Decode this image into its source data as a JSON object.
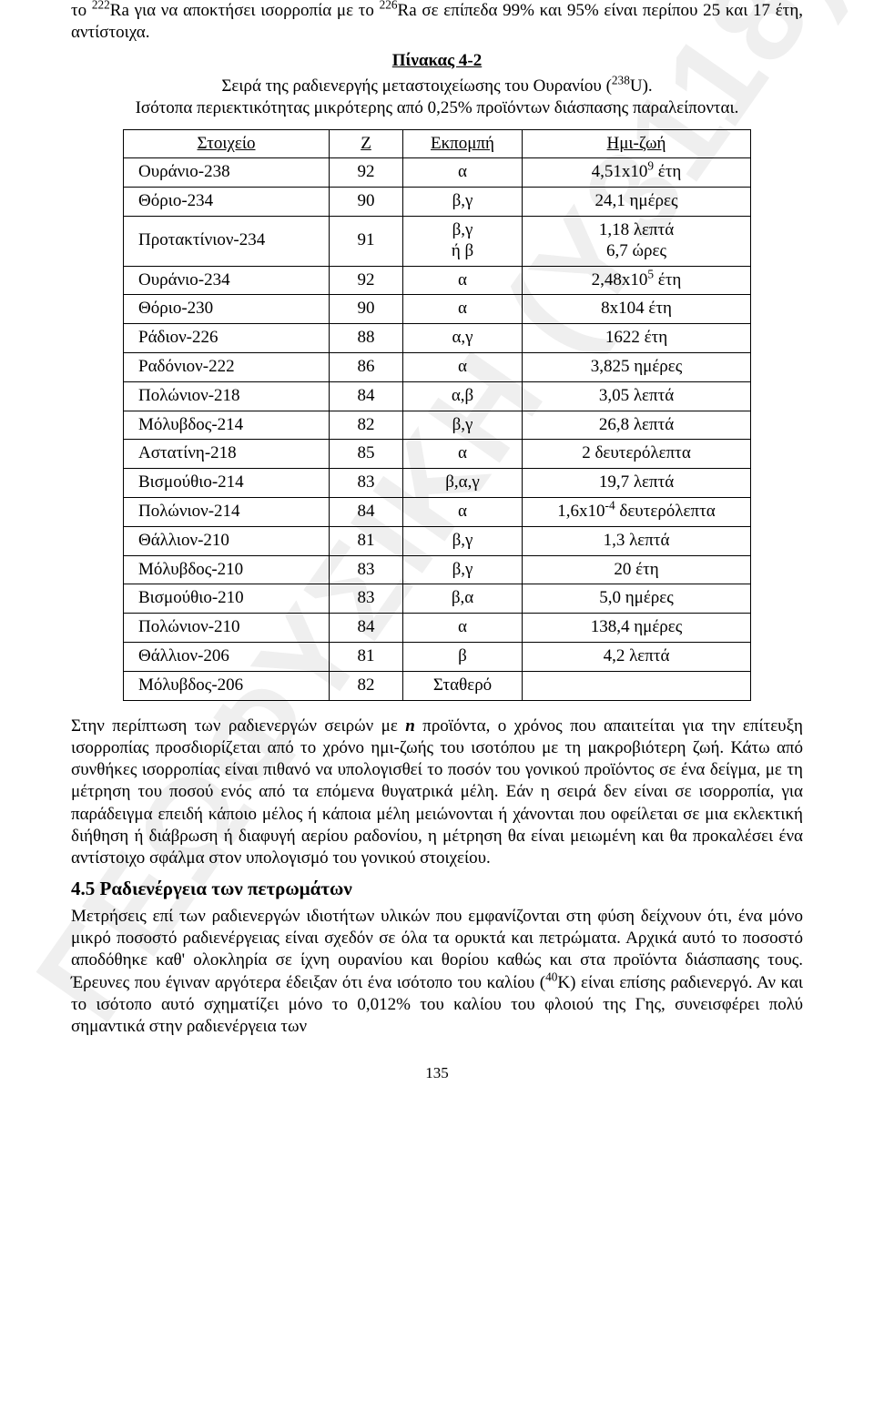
{
  "intro": {
    "line1_a": "το ",
    "line1_sup1": "222",
    "line1_b": "Ra για να αποκτήσει ισορροπία με το ",
    "line1_sup2": "226",
    "line1_c": "Ra σε επίπεδα 99% και 95% είναι περίπου 25 και 17 έτη, αντίστοιχα."
  },
  "tableTitle": {
    "t1": "Πίνακας 4-2",
    "t2_a": "Σειρά της ραδιενεργής μεταστοιχείωσης του Ουρανίου (",
    "t2_sup": "238",
    "t2_b": "U).",
    "t3": "Ισότοπα περιεκτικότητας μικρότερης από 0,25% προϊόντων διάσπασης παραλείπονται."
  },
  "headers": {
    "el": "Στοιχείο",
    "z": "Z",
    "emit": "Εκπομπή",
    "hl": "Ημι-ζωή"
  },
  "rows": [
    {
      "el": "Ουράνιο-238",
      "z": "92",
      "emit": "α",
      "hl": "4,51x10<sup>9</sup> έτη"
    },
    {
      "el": "Θόριο-234",
      "z": "90",
      "emit": "β,γ",
      "hl": "24,1 ημέρες"
    },
    {
      "el": "Προτακτίνιον-234",
      "z": "91",
      "emit": "β,γ<br>ή β",
      "hl": "1,18 λεπτά<br>6,7 ώρες"
    },
    {
      "el": "Ουράνιο-234",
      "z": "92",
      "emit": "α",
      "hl": "2,48x10<sup>5</sup> έτη"
    },
    {
      "el": "Θόριο-230",
      "z": "90",
      "emit": "α",
      "hl": "8x104 έτη"
    },
    {
      "el": "Ράδιον-226",
      "z": "88",
      "emit": "α,γ",
      "hl": "1622 έτη"
    },
    {
      "el": "Ραδόνιον-222",
      "z": "86",
      "emit": "α",
      "hl": "3,825 ημέρες"
    },
    {
      "el": "Πολώνιον-218",
      "z": "84",
      "emit": "α,β",
      "hl": "3,05 λεπτά"
    },
    {
      "el": "Μόλυβδος-214",
      "z": "82",
      "emit": "β,γ",
      "hl": "26,8 λεπτά"
    },
    {
      "el": "Αστατίνη-218",
      "z": "85",
      "emit": "α",
      "hl": "2 δευτερόλεπτα"
    },
    {
      "el": "Βισμούθιο-214",
      "z": "83",
      "emit": "β,α,γ",
      "hl": "19,7 λεπτά"
    },
    {
      "el": "Πολώνιον-214",
      "z": "84",
      "emit": "α",
      "hl": "1,6x10<sup>-4</sup> δευτερόλεπτα"
    },
    {
      "el": "Θάλλιον-210",
      "z": "81",
      "emit": "β,γ",
      "hl": "1,3 λεπτά"
    },
    {
      "el": "Μόλυβδος-210",
      "z": "83",
      "emit": "β,γ",
      "hl": "20 έτη"
    },
    {
      "el": "Βισμούθιο-210",
      "z": "83",
      "emit": "β,α",
      "hl": "5,0 ημέρες"
    },
    {
      "el": "Πολώνιον-210",
      "z": "84",
      "emit": "α",
      "hl": "138,4 ημέρες"
    },
    {
      "el": "Θάλλιον-206",
      "z": "81",
      "emit": "β",
      "hl": "4,2 λεπτά"
    },
    {
      "el": "Μόλυβδος-206",
      "z": "82",
      "emit": "Σταθερό",
      "hl": ""
    }
  ],
  "para1_a": "Στην περίπτωση των ραδιενεργών σειρών με ",
  "para1_n": "n",
  "para1_b": " προϊόντα, ο χρόνος που απαιτείται για την επίτευξη ισορροπίας προσδιορίζεται από το χρόνο ημι-ζωής του ισοτόπου με τη μακροβιότερη ζωή. Κάτω από συνθήκες ισορροπίας είναι πιθανό να υπολογισθεί το ποσόν του γονικού προϊόντος σε ένα δείγμα, με τη μέτρηση του ποσού ενός από τα επόμενα θυγατρικά μέλη. Εάν η σειρά δεν είναι σε ισορροπία, για παράδειγμα επειδή κάποιο μέλος ή κάποια μέλη μειώνονται ή χάνονται που οφείλεται σε μια εκλεκτική διήθηση ή διάβρωση ή διαφυγή αερίου ραδονίου, η μέτρηση θα είναι μειωμένη και θα προκαλέσει ένα αντίστοιχο σφάλμα στον υπολογισμό του γονικού στοιχείου.",
  "section45": "4.5 Ραδιενέργεια των πετρωμάτων",
  "para2_a": "Μετρήσεις επί των ραδιενεργών ιδιοτήτων υλικών που εμφανίζονται στη φύση δείχνουν ότι, ένα μόνο μικρό ποσοστό ραδιενέργειας είναι σχεδόν σε όλα τα ορυκτά και πετρώματα. Αρχικά αυτό το ποσοστό αποδόθηκε καθ' ολοκληρία σε ίχνη ουρανίου και θορίου καθώς και στα προϊόντα διάσπασης τους. Έρευνες που έγιναν αργότερα έδειξαν ότι ένα ισότοπο του καλίου (",
  "para2_sup": "40",
  "para2_b": "K) είναι επίσης ραδιενεργό. Αν και το ισότοπο αυτό σχηματίζει μόνο το 0,012% του καλίου του φλοιού της Γης, συνεισφέρει πολύ σημαντικά στην ραδιενέργεια των",
  "pagenum": "135",
  "watermark": "ΓΕΩΦΥΣΙΚΗ (Υ3118)"
}
